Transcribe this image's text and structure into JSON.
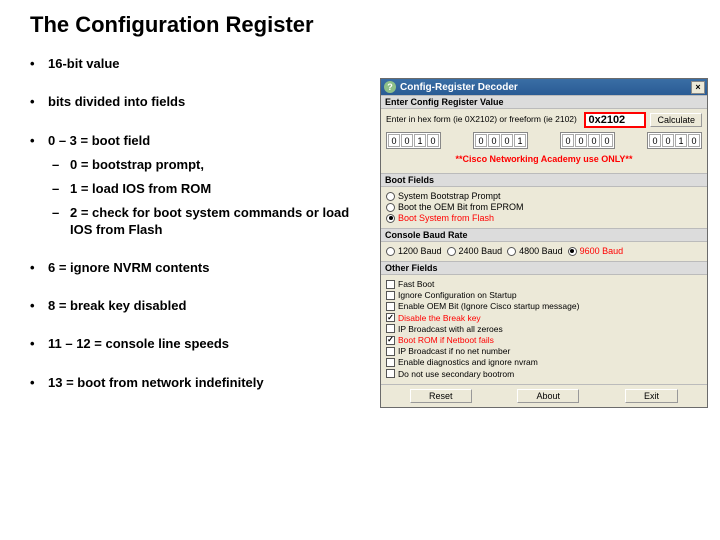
{
  "title": "The Configuration Register",
  "bullets": {
    "b1": "16-bit value",
    "b2": "bits divided into fields",
    "b3": "0 – 3 = boot field",
    "b3a": "0 = bootstrap prompt,",
    "b3b": "1 = load IOS from ROM",
    "b3c": "2 = check for boot system commands or load IOS from Flash",
    "b4": "6 = ignore NVRM contents",
    "b5": "8 = break key disabled",
    "b6": "11 – 12 = console line speeds",
    "b7": "13  = boot from network indefinitely"
  },
  "panel": {
    "window_title": "Config-Register Decoder",
    "close_x": "×",
    "hdr_enter": "Enter Config Register Value",
    "hint": "Enter in hex form (ie 0X2102) or freeform (ie 2102)",
    "hex_value": "0x2102",
    "btn_calc": "Calculate",
    "bits": [
      [
        "0",
        "0",
        "1",
        "0"
      ],
      [
        "0",
        "0",
        "0",
        "1"
      ],
      [
        "0",
        "0",
        "0",
        "0"
      ],
      [
        "0",
        "0",
        "1",
        "0"
      ]
    ],
    "banner": "**Cisco Networking Academy use ONLY**",
    "hdr_boot": "Boot Fields",
    "boot": {
      "o1": "System Bootstrap Prompt",
      "o2": "Boot the OEM Bit from EPROM",
      "o3": "Boot System from Flash",
      "selected": 3
    },
    "hdr_baud": "Console Baud Rate",
    "baud": {
      "o1": "1200 Baud",
      "o2": "2400 Baud",
      "o3": "4800 Baud",
      "o4": "9600 Baud",
      "selected": 4
    },
    "hdr_other": "Other Fields",
    "other": [
      {
        "label": "Fast Boot",
        "on": false
      },
      {
        "label": "Ignore Configuration on Startup",
        "on": false
      },
      {
        "label": "Enable OEM Bit (Ignore Cisco startup message)",
        "on": false
      },
      {
        "label": "Disable the Break key",
        "on": true
      },
      {
        "label": "IP Broadcast with all zeroes",
        "on": false
      },
      {
        "label": "Boot ROM if Netboot fails",
        "on": true
      },
      {
        "label": "IP Broadcast if no net number",
        "on": false
      },
      {
        "label": "Enable diagnostics and ignore nvram",
        "on": false
      },
      {
        "label": "Do not use secondary bootrom",
        "on": false
      }
    ],
    "btn_reset": "Reset",
    "btn_about": "About",
    "btn_exit": "Exit"
  }
}
